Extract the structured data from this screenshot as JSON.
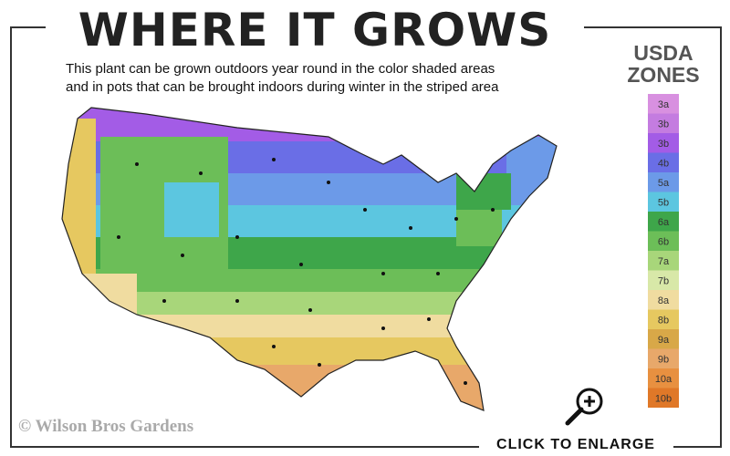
{
  "header": {
    "title": "WHERE IT GROWS",
    "subtitle_lines": [
      "This plant can be grown outdoors year round in the color shaded areas",
      "and in pots that can be brought indoors during winter in the striped area"
    ]
  },
  "legend": {
    "title_lines": [
      "USDA",
      "ZONES"
    ],
    "zones": [
      {
        "label": "3a",
        "color": "#d890e0"
      },
      {
        "label": "3b",
        "color": "#c47ce0"
      },
      {
        "label": "3b",
        "color": "#a35ce6"
      },
      {
        "label": "4b",
        "color": "#6a6ee6"
      },
      {
        "label": "5a",
        "color": "#6c9ae8"
      },
      {
        "label": "5b",
        "color": "#5cc6e0"
      },
      {
        "label": "6a",
        "color": "#3ea64a"
      },
      {
        "label": "6b",
        "color": "#6cbe58"
      },
      {
        "label": "7a",
        "color": "#a8d67a"
      },
      {
        "label": "7b",
        "color": "#d8e8a8"
      },
      {
        "label": "8a",
        "color": "#f0dca0"
      },
      {
        "label": "8b",
        "color": "#e6c860"
      },
      {
        "label": "9a",
        "color": "#d8a848"
      },
      {
        "label": "9b",
        "color": "#e8a86a"
      },
      {
        "label": "10a",
        "color": "#e89040"
      },
      {
        "label": "10b",
        "color": "#e07828"
      }
    ]
  },
  "watermark": "© Wilson Bros Gardens",
  "link": "CLICK TO ENLARGE"
}
